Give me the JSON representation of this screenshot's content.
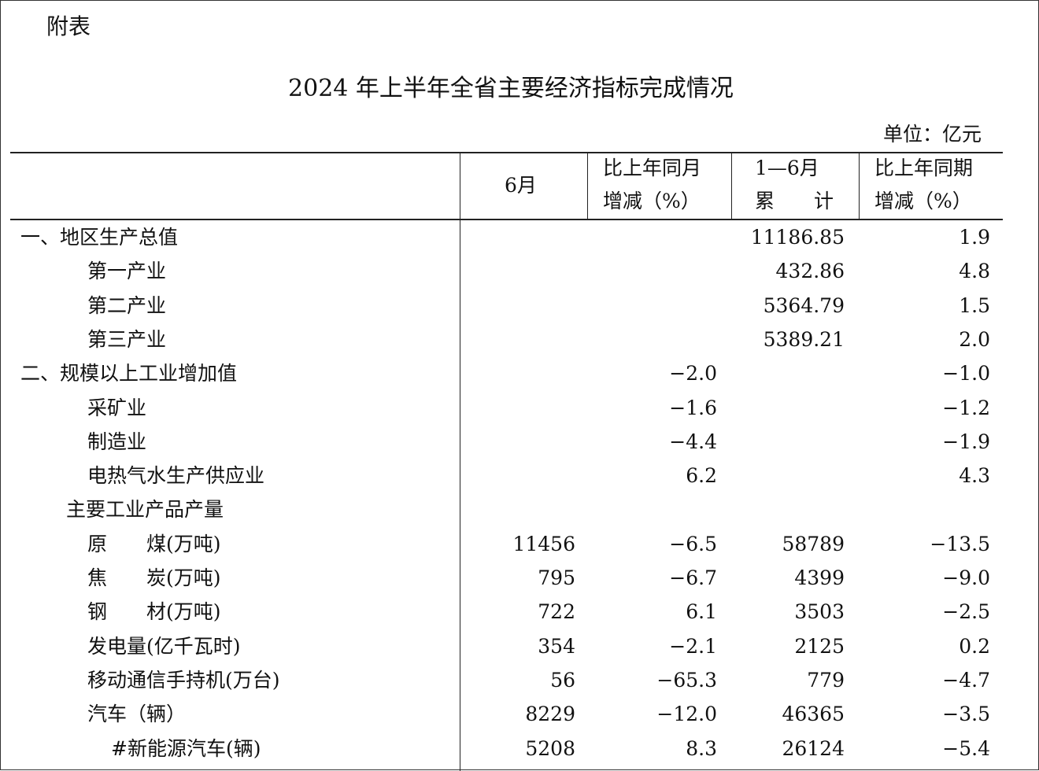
{
  "header": {
    "label": "附表",
    "title": "2024 年上半年全省主要经济指标完成情况",
    "unit": "单位：亿元"
  },
  "table": {
    "columns": [
      [
        "6月"
      ],
      [
        "比上年同月",
        "增减（%）"
      ],
      [
        "1—6月",
        "累　　计"
      ],
      [
        "比上年同期",
        "增减（%）"
      ]
    ],
    "rows": [
      [
        "一、地区生产总值",
        null,
        null,
        "11186.85",
        "1.9"
      ],
      [
        "第一产业",
        null,
        null,
        "432.86",
        "4.8"
      ],
      [
        "第二产业",
        null,
        null,
        "5364.79",
        "1.5"
      ],
      [
        "第三产业",
        null,
        null,
        "5389.21",
        "2.0"
      ],
      [
        "二、规模以上工业增加值",
        null,
        "−2.0",
        null,
        "−1.0"
      ],
      [
        "采矿业",
        null,
        "−1.6",
        null,
        "−1.2"
      ],
      [
        "制造业",
        null,
        "−4.4",
        null,
        "−1.9"
      ],
      [
        "电热气水生产供应业",
        null,
        "6.2",
        null,
        "4.3"
      ],
      [
        "主要工业产品产量",
        null,
        null,
        null,
        null
      ],
      [
        "原　　煤(万吨)",
        "11456",
        "−6.5",
        "58789",
        "−13.5"
      ],
      [
        "焦　　炭(万吨)",
        "795",
        "−6.7",
        "4399",
        "−9.0"
      ],
      [
        "钢　　材(万吨)",
        "722",
        "6.1",
        "3503",
        "−2.5"
      ],
      [
        "发电量(亿千瓦时)",
        "354",
        "−2.1",
        "2125",
        "0.2"
      ],
      [
        "移动通信手持机(万台)",
        "56",
        "−65.3",
        "779",
        "−4.7"
      ],
      [
        "汽车（辆）",
        "8229",
        "−12.0",
        "46365",
        "−3.5"
      ],
      [
        "#新能源汽车(辆)",
        "5208",
        "8.3",
        "26124",
        "−5.4"
      ]
    ]
  }
}
